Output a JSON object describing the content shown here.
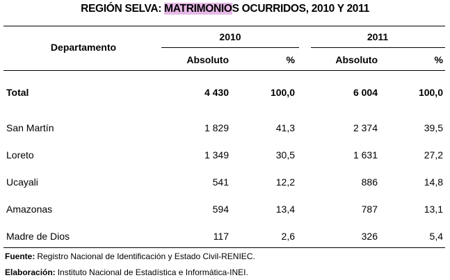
{
  "header": {
    "title": [
      "REGIÓN SELVA: ",
      "MATRIMONIO",
      "S OCURRIDOS, 2010 Y 2011"
    ]
  },
  "table": {
    "row_header": "Departamento",
    "groups": [
      {
        "year": "2010",
        "columns": [
          "Absoluto",
          "%"
        ]
      },
      {
        "year": "2011",
        "columns": [
          "Absoluto",
          "%"
        ]
      }
    ],
    "rows": [
      [
        "Total",
        "4 430",
        "100,0",
        "6 004",
        "100,0"
      ],
      [
        "San Martín",
        "1 829",
        "41,3",
        "2 374",
        "39,5"
      ],
      [
        "Loreto",
        "1 349",
        "30,5",
        "1 631",
        "27,2"
      ],
      [
        "Ucayali",
        "541",
        "12,2",
        "886",
        "14,8"
      ],
      [
        "Amazonas",
        "594",
        "13,4",
        "787",
        "13,1"
      ],
      [
        "Madre de Dios",
        "117",
        "2,6",
        "326",
        "5,4"
      ]
    ]
  },
  "footer": [
    {
      "label": "Fuente:",
      "text": "Registro Nacional de Identificación y Estado Civil-RENIEC."
    },
    {
      "label": "Elaboración:",
      "text": "Instituto Nacional de Estadística e Informática-INEI."
    }
  ]
}
